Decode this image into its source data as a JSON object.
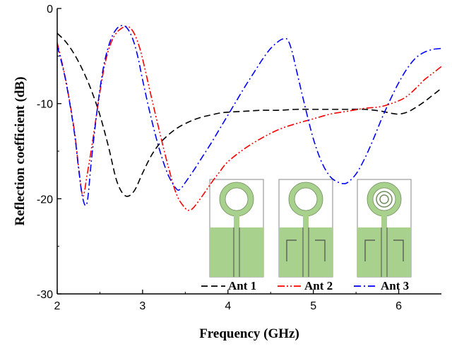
{
  "chart_data": {
    "type": "line",
    "title": "",
    "xlabel": "Frequency (GHz)",
    "ylabel": "Reflection coefficient (dB)",
    "xlim": [
      2,
      6.5
    ],
    "ylim": [
      -30,
      0
    ],
    "xticks": [
      2,
      3,
      4,
      5,
      6
    ],
    "yticks": [
      0,
      -10,
      -20,
      -30
    ],
    "grid": false,
    "legend_position": "bottom-right",
    "series": [
      {
        "name": "Ant 1",
        "color": "#000000",
        "dash": "dash",
        "x": [
          2.0,
          2.1,
          2.2,
          2.3,
          2.4,
          2.5,
          2.6,
          2.7,
          2.8,
          2.9,
          3.0,
          3.1,
          3.2,
          3.3,
          3.4,
          3.5,
          3.6,
          3.7,
          3.8,
          3.9,
          4.0,
          4.2,
          4.4,
          4.6,
          4.8,
          5.0,
          5.2,
          5.4,
          5.6,
          5.8,
          5.9,
          6.0,
          6.1,
          6.2,
          6.3,
          6.4,
          6.5
        ],
        "y": [
          -2.6,
          -3.5,
          -4.8,
          -6.5,
          -8.6,
          -11.2,
          -14.5,
          -18.2,
          -19.7,
          -19.2,
          -17.3,
          -15.5,
          -14.2,
          -13.3,
          -12.6,
          -12.1,
          -11.7,
          -11.4,
          -11.2,
          -11.0,
          -10.9,
          -10.8,
          -10.7,
          -10.7,
          -10.6,
          -10.6,
          -10.6,
          -10.6,
          -10.6,
          -10.8,
          -11.0,
          -11.1,
          -10.9,
          -10.4,
          -9.8,
          -9.1,
          -8.4
        ]
      },
      {
        "name": "Ant 2",
        "color": "#ff0000",
        "dash": "dash-dot-dot",
        "x": [
          2.0,
          2.1,
          2.2,
          2.25,
          2.3,
          2.35,
          2.4,
          2.45,
          2.5,
          2.55,
          2.6,
          2.65,
          2.7,
          2.75,
          2.8,
          2.85,
          2.9,
          2.95,
          3.0,
          3.1,
          3.2,
          3.3,
          3.4,
          3.5,
          3.55,
          3.6,
          3.7,
          3.8,
          3.9,
          4.0,
          4.2,
          4.4,
          4.6,
          4.8,
          5.0,
          5.2,
          5.4,
          5.6,
          5.8,
          6.0,
          6.1,
          6.2,
          6.3,
          6.4,
          6.5
        ],
        "y": [
          -3.6,
          -7.5,
          -12.8,
          -16.6,
          -19.7,
          -17.5,
          -14.8,
          -11.8,
          -8.8,
          -6.2,
          -4.4,
          -3.2,
          -2.5,
          -2.1,
          -1.9,
          -2.0,
          -2.6,
          -3.7,
          -5.3,
          -9.2,
          -13.0,
          -16.6,
          -19.6,
          -21.0,
          -21.2,
          -20.9,
          -19.7,
          -18.4,
          -17.2,
          -16.1,
          -14.7,
          -13.6,
          -12.7,
          -12.1,
          -11.6,
          -11.1,
          -10.8,
          -10.5,
          -10.3,
          -9.7,
          -9.2,
          -8.4,
          -7.5,
          -6.8,
          -6.1
        ]
      },
      {
        "name": "Ant 3",
        "color": "#0000ff",
        "dash": "dash-dot",
        "x": [
          2.0,
          2.1,
          2.2,
          2.25,
          2.3,
          2.35,
          2.4,
          2.45,
          2.5,
          2.55,
          2.6,
          2.65,
          2.7,
          2.75,
          2.8,
          2.85,
          2.9,
          2.95,
          3.0,
          3.1,
          3.2,
          3.3,
          3.4,
          3.45,
          3.5,
          3.6,
          3.7,
          3.8,
          3.9,
          4.0,
          4.1,
          4.2,
          4.3,
          4.4,
          4.5,
          4.6,
          4.65,
          4.7,
          4.75,
          4.8,
          4.9,
          5.0,
          5.1,
          5.2,
          5.3,
          5.35,
          5.4,
          5.5,
          5.6,
          5.7,
          5.8,
          5.9,
          6.0,
          6.1,
          6.2,
          6.3,
          6.4,
          6.5
        ],
        "y": [
          -3.9,
          -7.6,
          -13.0,
          -16.8,
          -20.0,
          -20.4,
          -16.0,
          -12.0,
          -8.5,
          -5.8,
          -4.0,
          -2.8,
          -2.1,
          -1.8,
          -1.9,
          -2.5,
          -3.6,
          -5.3,
          -7.5,
          -11.5,
          -14.9,
          -17.5,
          -19.0,
          -18.9,
          -18.3,
          -17.0,
          -15.6,
          -14.2,
          -12.7,
          -11.2,
          -9.7,
          -8.2,
          -6.8,
          -5.4,
          -4.2,
          -3.4,
          -3.2,
          -3.3,
          -4.5,
          -6.4,
          -10.2,
          -13.7,
          -16.2,
          -17.7,
          -18.3,
          -18.4,
          -18.3,
          -17.4,
          -15.8,
          -13.8,
          -11.6,
          -9.6,
          -7.8,
          -6.3,
          -5.2,
          -4.6,
          -4.3,
          -4.2
        ]
      }
    ]
  },
  "inset": {
    "description_label": "",
    "panel_count": 3,
    "ring_color": "#a9d18e",
    "ground_color": "#a9d18e",
    "line_color": "#4d4d4d"
  }
}
